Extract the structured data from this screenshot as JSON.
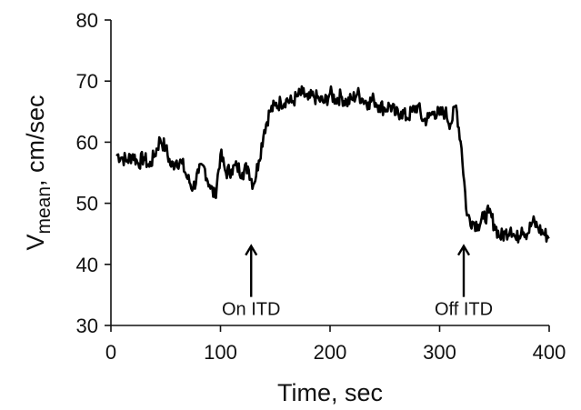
{
  "chart_data": {
    "type": "line",
    "title": "",
    "xlabel": "Time, sec",
    "ylabel": {
      "main": "V",
      "sub": "mean",
      "rest": ",  cm/sec"
    },
    "xlim": [
      0,
      400
    ],
    "ylim": [
      30,
      80
    ],
    "xticks": [
      0,
      100,
      200,
      300,
      400
    ],
    "yticks": [
      30,
      40,
      50,
      60,
      70,
      80
    ],
    "grid": false,
    "legend": "none",
    "annotations": [
      {
        "text": "On ITD",
        "x": 128,
        "arrow_tip_y": 43
      },
      {
        "text": "Off ITD",
        "x": 322,
        "arrow_tip_y": 43
      }
    ],
    "series": [
      {
        "x": [
          5,
          10,
          15,
          20,
          25,
          30,
          35,
          40,
          45,
          50,
          55,
          60,
          65,
          70,
          75,
          80,
          85,
          90,
          95,
          100,
          105,
          110,
          115,
          120,
          125,
          130,
          135,
          140,
          145,
          150,
          155,
          160,
          165,
          170,
          175,
          180,
          185,
          190,
          195,
          200,
          205,
          210,
          215,
          220,
          225,
          230,
          235,
          240,
          245,
          250,
          255,
          260,
          265,
          270,
          275,
          280,
          285,
          290,
          295,
          300,
          305,
          310,
          315,
          320,
          325,
          330,
          335,
          340,
          345,
          350,
          355,
          360,
          365,
          370,
          375,
          380,
          385,
          390,
          395,
          400
        ],
        "y": [
          58,
          57.5,
          57,
          58,
          56.5,
          57.5,
          56,
          58,
          60.5,
          59,
          56,
          57,
          56.5,
          54,
          52.5,
          55,
          56,
          53,
          51,
          58,
          55,
          55.5,
          56,
          55,
          56,
          53,
          57,
          62,
          65,
          66,
          66.5,
          67,
          66.5,
          67.5,
          68,
          67,
          67.5,
          67,
          66.5,
          68,
          67,
          67.5,
          66.5,
          67,
          68,
          67,
          66.5,
          67,
          66,
          65.5,
          66,
          64.5,
          65,
          64,
          65,
          66,
          63.5,
          64,
          65,
          64.5,
          65,
          63,
          66,
          59,
          48,
          47,
          46.5,
          47.5,
          48.5,
          46.5,
          44.5,
          45,
          46,
          44,
          46,
          45,
          47,
          46,
          45,
          44.5
        ]
      }
    ]
  },
  "colors": {
    "line": "#000000",
    "axes": "#111111",
    "background": "#ffffff"
  }
}
